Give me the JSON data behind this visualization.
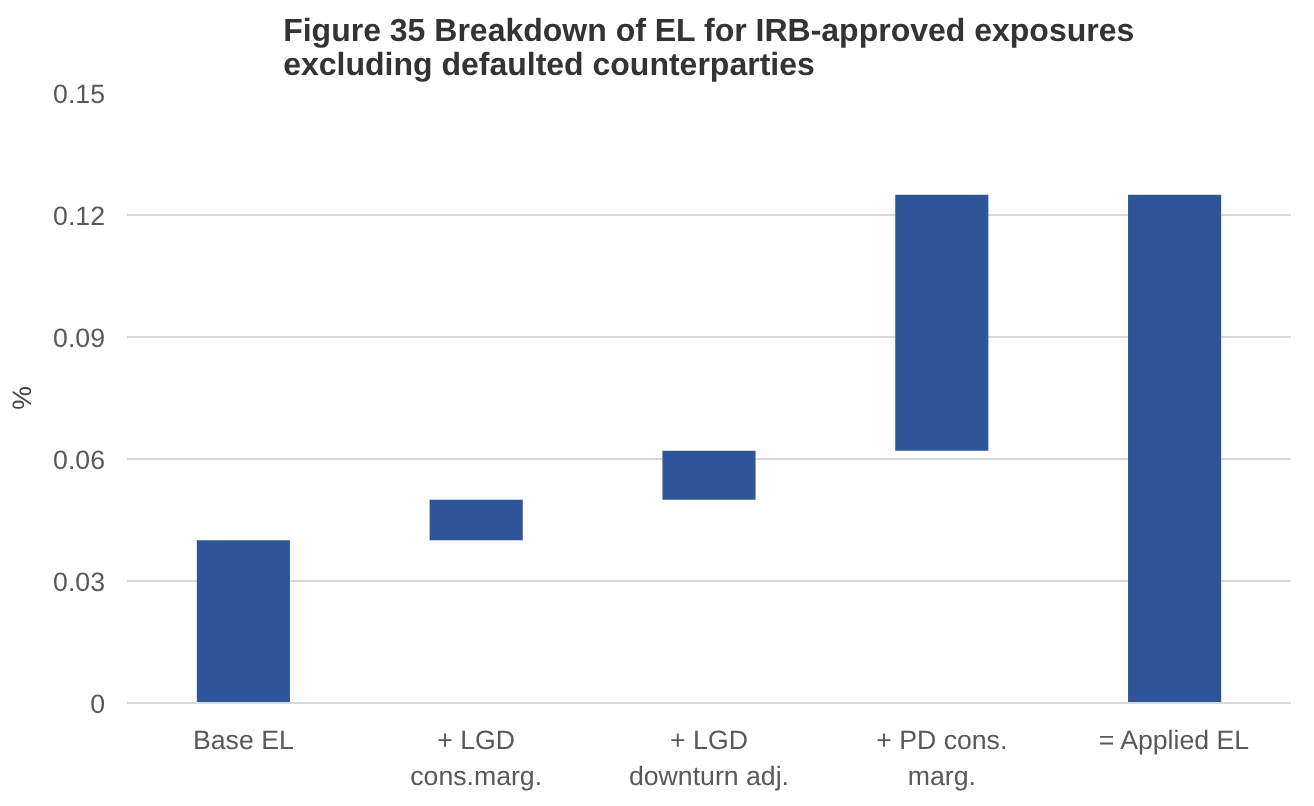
{
  "chart_data": {
    "type": "bar",
    "title": "Figure 35 Breakdown of EL for IRB-approved exposures\nexcluding defaulted counterparties",
    "ylabel": "%",
    "categories": [
      "Base EL",
      "+ LGD\ncons.marg.",
      "+ LGD\ndownturn adj.",
      "+ PD cons.\nmarg.",
      "= Applied EL"
    ],
    "base": [
      0,
      0.04,
      0.05,
      0.062,
      0
    ],
    "values": [
      0.04,
      0.01,
      0.012,
      0.063,
      0.125
    ],
    "color": "#2e5597",
    "ylim": [
      0,
      0.15
    ],
    "yticks": [
      0,
      0.03,
      0.06,
      0.09,
      0.12,
      0.15
    ],
    "grid": "y"
  }
}
